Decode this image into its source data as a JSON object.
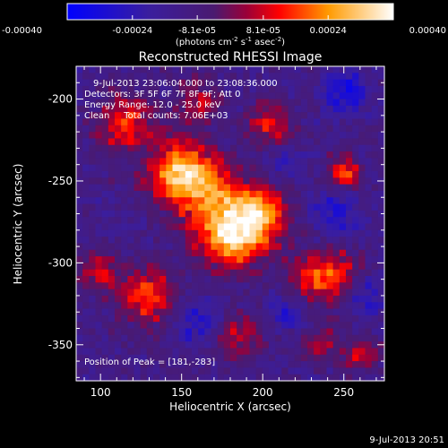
{
  "chart_data": {
    "type": "heatmap",
    "title": "Reconstructed RHESSI Image",
    "xlabel": "Heliocentric X (arcsec)",
    "ylabel": "Heliocentric Y (arcsec)",
    "xlim": [
      85,
      275
    ],
    "ylim": [
      -372,
      -180
    ],
    "x_ticks": [
      100,
      150,
      200,
      250
    ],
    "y_ticks": [
      -200,
      -250,
      -300,
      -350
    ],
    "colorbar": {
      "range": [
        -0.0004,
        0.0004
      ],
      "ticks": [
        -0.0004,
        -0.00024,
        -8.1e-05,
        8.1e-05,
        0.00024,
        0.0004
      ],
      "tick_labels": [
        "-0.00040",
        "-0.00024",
        "-8.1e-05",
        "8.1e-05",
        "0.00024",
        "0.00040"
      ],
      "unit_label": "(photons cm",
      "unit_exp1": "-2",
      "unit_mid": " s",
      "unit_exp2": "-1",
      "unit_tail": " asec",
      "unit_exp3": "-2",
      "unit_end": ")"
    },
    "annotations": [
      "9-Jul-2013 23:06:04.000 to 23:08:36.000",
      "Detectors: 3F 5F 6F 7F 8F 9F; Att 0",
      "Energy Range: 12.0 - 25.0 keV",
      "Clean     Total counts: 7.06E+03"
    ],
    "peak_label": "Position of Peak = [181,-283]",
    "peak_position": [
      181,
      -283
    ],
    "footer_timestamp": "9-Jul-2013 20:51",
    "blobs": [
      {
        "x": 150,
        "y": -245,
        "sigma": 14,
        "amp": 0.0004
      },
      {
        "x": 181,
        "y": -283,
        "sigma": 14,
        "amp": 0.00042
      },
      {
        "x": 200,
        "y": -270,
        "sigma": 12,
        "amp": 0.0003
      },
      {
        "x": 115,
        "y": -215,
        "sigma": 12,
        "amp": 0.00026
      },
      {
        "x": 205,
        "y": -215,
        "sigma": 9,
        "amp": 0.00022
      },
      {
        "x": 130,
        "y": -320,
        "sigma": 12,
        "amp": 0.00028
      },
      {
        "x": 230,
        "y": -310,
        "sigma": 11,
        "amp": 0.00022
      },
      {
        "x": 245,
        "y": -305,
        "sigma": 10,
        "amp": 0.0002
      },
      {
        "x": 250,
        "y": -245,
        "sigma": 7,
        "amp": 0.0003
      },
      {
        "x": 185,
        "y": -345,
        "sigma": 10,
        "amp": 0.00018
      },
      {
        "x": 260,
        "y": -355,
        "sigma": 8,
        "amp": 0.00018
      },
      {
        "x": 100,
        "y": -305,
        "sigma": 9,
        "amp": 0.0002
      },
      {
        "x": 160,
        "y": -200,
        "sigma": 9,
        "amp": 0.00018
      },
      {
        "x": 235,
        "y": -350,
        "sigma": 8,
        "amp": 0.00015
      },
      {
        "x": 170,
        "y": -260,
        "sigma": 16,
        "amp": 0.0002
      },
      {
        "x": 250,
        "y": -195,
        "sigma": 10,
        "amp": -0.0002
      },
      {
        "x": 245,
        "y": -270,
        "sigma": 10,
        "amp": -0.00018
      },
      {
        "x": 160,
        "y": -335,
        "sigma": 10,
        "amp": -0.00016
      },
      {
        "x": 215,
        "y": -330,
        "sigma": 8,
        "amp": -0.00014
      },
      {
        "x": 265,
        "y": -320,
        "sigma": 8,
        "amp": -0.00014
      },
      {
        "x": 215,
        "y": -240,
        "sigma": 8,
        "amp": -0.00012
      }
    ]
  }
}
